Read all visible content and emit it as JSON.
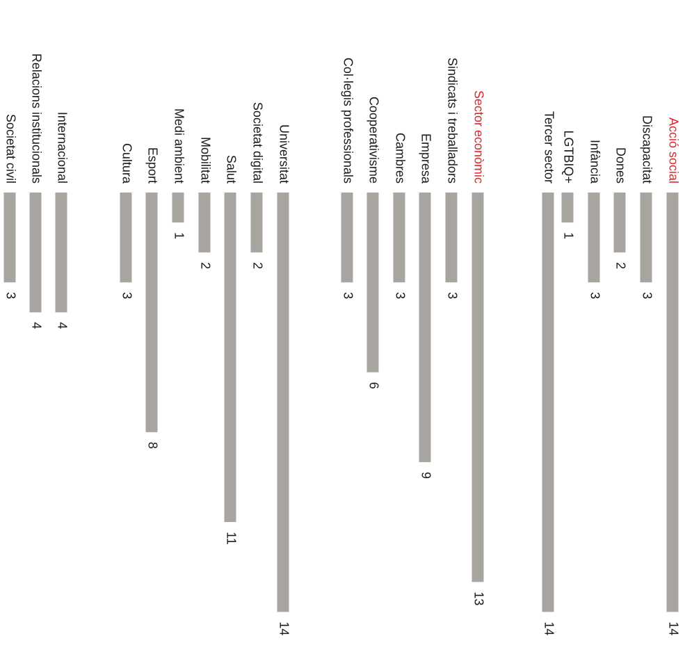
{
  "chart_data": {
    "type": "bar",
    "orientation": "rotated",
    "title": "",
    "xlabel": "",
    "ylabel": "",
    "bar_color": "#a8a5a1",
    "highlight_color": "#e3232b",
    "max_value": 14,
    "groups": [
      {
        "header": "Acció social",
        "header_value": 14,
        "items": [
          {
            "label": "Discapacitat",
            "value": 3
          },
          {
            "label": "Dones",
            "value": 2
          },
          {
            "label": "Infància",
            "value": 3
          },
          {
            "label": "LGTBIQ+",
            "value": 1
          },
          {
            "label": "Tercer sector",
            "value": 14
          }
        ]
      },
      {
        "header": "Sector econòmic",
        "header_value": 13,
        "items": [
          {
            "label": "Sindicats i treballadors",
            "value": 3
          },
          {
            "label": "Empresa",
            "value": 9
          },
          {
            "label": "Cambres",
            "value": 3
          },
          {
            "label": "Cooperativisme",
            "value": 6
          },
          {
            "label": "Col·legis professionals",
            "value": 3
          }
        ]
      },
      {
        "header": "",
        "header_value": null,
        "items": [
          {
            "label": "Universitat",
            "value": 14
          },
          {
            "label": "Societat digital",
            "value": 2
          },
          {
            "label": "Salut",
            "value": 11
          },
          {
            "label": "Mobilitat",
            "value": 2
          },
          {
            "label": "Medi ambient",
            "value": 1
          },
          {
            "label": "Esport",
            "value": 8
          },
          {
            "label": "Cultura",
            "value": 3
          }
        ]
      },
      {
        "header": "",
        "header_value": null,
        "items": [
          {
            "label": "Internacional",
            "value": 4
          },
          {
            "label": "Relacions institucionals",
            "value": 4
          },
          {
            "label": "Societat civil",
            "value": 3
          }
        ]
      }
    ]
  }
}
